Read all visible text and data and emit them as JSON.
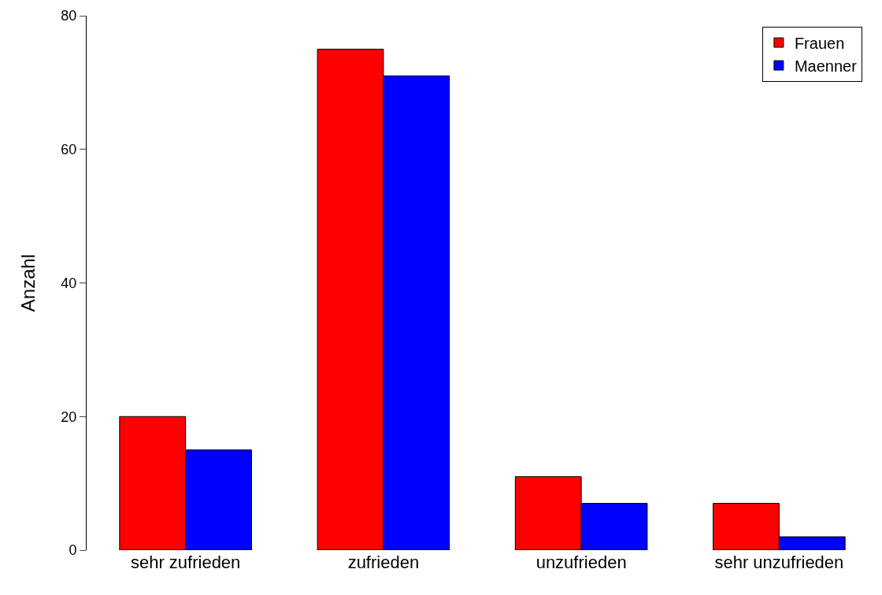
{
  "chart_data": {
    "type": "bar",
    "ylabel": "Anzahl",
    "categories": [
      "sehr zufrieden",
      "zufrieden",
      "unzufrieden",
      "sehr unzufrieden"
    ],
    "series": [
      {
        "name": "Frauen",
        "color": "#ff0000",
        "values": [
          20,
          75,
          11,
          7
        ]
      },
      {
        "name": "Maenner",
        "color": "#0000ff",
        "values": [
          15,
          71,
          7,
          2
        ]
      }
    ],
    "ylim": [
      0,
      80
    ],
    "yticks": [
      0,
      20,
      40,
      60,
      80
    ],
    "grid": false,
    "legend": "top right"
  }
}
